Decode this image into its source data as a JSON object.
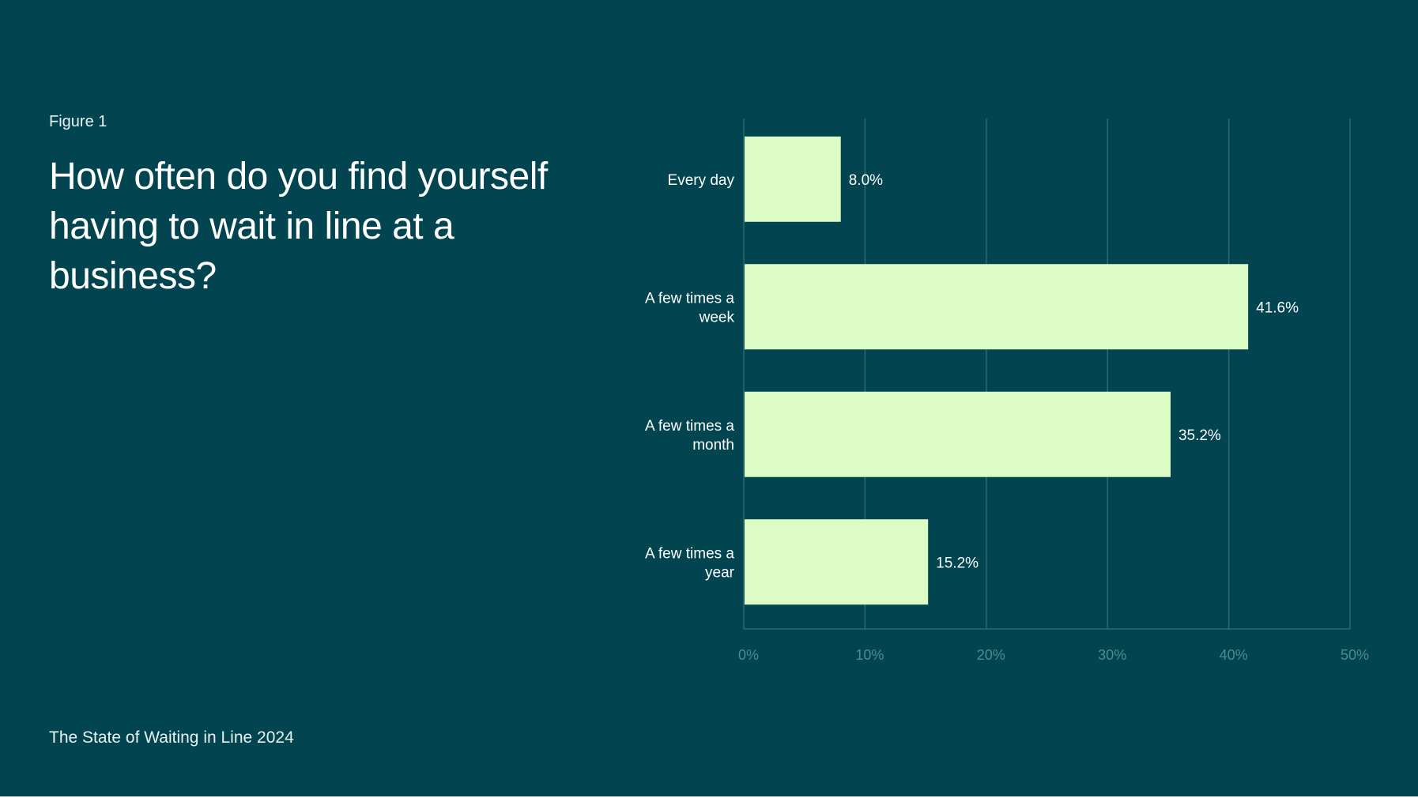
{
  "figure_label": "Figure 1",
  "title": "How often do you find yourself having to wait in line at a business?",
  "footer": "The State of Waiting in Line 2024",
  "colors": {
    "background": "#02444f",
    "bar": "#dbfdc5",
    "grid": "#2a6b71",
    "tick_text": "#4d8c8e",
    "text": "#ffffff"
  },
  "chart_data": {
    "type": "bar",
    "orientation": "horizontal",
    "categories": [
      [
        "Every day"
      ],
      [
        "A few times a",
        "week"
      ],
      [
        "A few times a",
        "month"
      ],
      [
        "A few times a",
        "year"
      ]
    ],
    "values": [
      8.0,
      41.6,
      35.2,
      15.2
    ],
    "value_labels": [
      "8.0%",
      "41.6%",
      "35.2%",
      "15.2%"
    ],
    "xlim": [
      0,
      50
    ],
    "xticks": [
      0,
      10,
      20,
      30,
      40,
      50
    ],
    "xtick_labels": [
      "0%",
      "10%",
      "20%",
      "30%",
      "40%",
      "50%"
    ],
    "grid": "vertical"
  }
}
